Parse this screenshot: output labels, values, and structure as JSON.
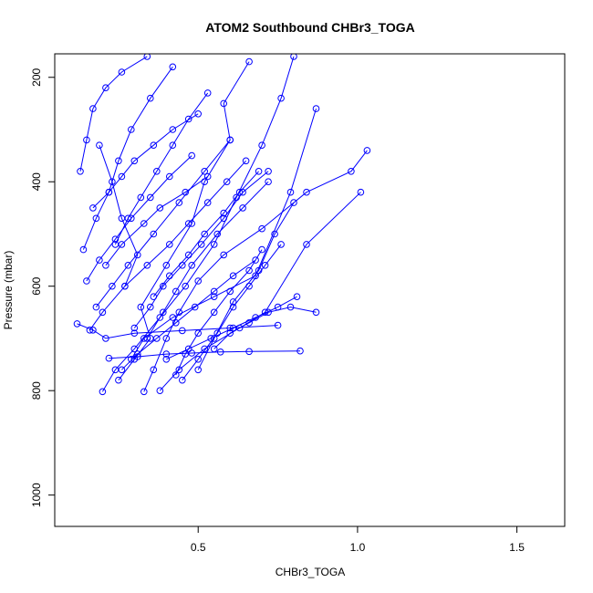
{
  "chart_data": {
    "type": "line",
    "title": "ATOM2 Southbound CHBr3_TOGA",
    "xlabel": "CHBr3_TOGA",
    "ylabel": "Pressure (mbar)",
    "xlim": [
      0.05,
      1.65
    ],
    "ylim": [
      1060,
      155
    ],
    "y_inverted": true,
    "xticks": [
      0.5,
      1.0,
      1.5
    ],
    "xtick_labels": [
      "0.5",
      "1.0",
      "1.5"
    ],
    "yticks": [
      200,
      400,
      600,
      800,
      1000
    ],
    "ytick_labels": [
      "200",
      "400",
      "600",
      "800",
      "1000"
    ],
    "grid": false,
    "marker": "open-circle",
    "series_color": "#0000ff",
    "series": [
      {
        "x": [
          0.2,
          0.24,
          0.3,
          0.38,
          0.46,
          0.55,
          0.62,
          0.7,
          0.76,
          0.8
        ],
        "y": [
          802,
          760,
          720,
          660,
          600,
          520,
          430,
          330,
          240,
          160
        ]
      },
      {
        "x": [
          0.25,
          0.3,
          0.35,
          0.32,
          0.4,
          0.48,
          0.52,
          0.6,
          0.58,
          0.66
        ],
        "y": [
          780,
          740,
          700,
          640,
          560,
          480,
          400,
          320,
          250,
          170
        ]
      },
      {
        "x": [
          0.33,
          0.36,
          0.4,
          0.44,
          0.5,
          0.58,
          0.7,
          0.84,
          0.98,
          1.03
        ],
        "y": [
          802,
          760,
          700,
          650,
          590,
          540,
          490,
          420,
          380,
          340
        ]
      },
      {
        "x": [
          0.29,
          0.33,
          0.42,
          0.55,
          0.68,
          0.79,
          0.87
        ],
        "y": [
          740,
          700,
          660,
          620,
          580,
          420,
          260
        ]
      },
      {
        "x": [
          0.38,
          0.44,
          0.52,
          0.63,
          0.71,
          0.84,
          1.01
        ],
        "y": [
          800,
          760,
          720,
          680,
          650,
          520,
          420
        ]
      },
      {
        "x": [
          0.16,
          0.2,
          0.27,
          0.31,
          0.26,
          0.23,
          0.19
        ],
        "y": [
          684,
          650,
          600,
          540,
          470,
          400,
          330
        ]
      },
      {
        "x": [
          0.22,
          0.31,
          0.4,
          0.48,
          0.57,
          0.66,
          0.82
        ],
        "y": [
          738,
          735,
          730,
          728,
          726,
          725,
          724
        ]
      },
      {
        "x": [
          0.12,
          0.17,
          0.21,
          0.3,
          0.45,
          0.6,
          0.75
        ],
        "y": [
          672,
          684,
          700,
          690,
          685,
          680,
          675
        ]
      },
      {
        "x": [
          0.14,
          0.18,
          0.22,
          0.25,
          0.29,
          0.35,
          0.42
        ],
        "y": [
          530,
          470,
          420,
          360,
          300,
          240,
          180
        ]
      },
      {
        "x": [
          0.45,
          0.5,
          0.56,
          0.61,
          0.66,
          0.71,
          0.76
        ],
        "y": [
          780,
          740,
          690,
          640,
          600,
          560,
          520
        ]
      },
      {
        "x": [
          0.13,
          0.15,
          0.17,
          0.21,
          0.26,
          0.34
        ],
        "y": [
          380,
          320,
          260,
          220,
          190,
          160
        ]
      },
      {
        "x": [
          0.5,
          0.55,
          0.61,
          0.69,
          0.74,
          0.8
        ],
        "y": [
          760,
          700,
          630,
          570,
          500,
          440
        ]
      },
      {
        "x": [
          0.27,
          0.34,
          0.41,
          0.47,
          0.53,
          0.59,
          0.65
        ],
        "y": [
          600,
          560,
          520,
          480,
          440,
          400,
          360
        ]
      },
      {
        "x": [
          0.18,
          0.23,
          0.28,
          0.36,
          0.44,
          0.52,
          0.6
        ],
        "y": [
          640,
          600,
          560,
          500,
          440,
          380,
          320
        ]
      },
      {
        "x": [
          0.34,
          0.39,
          0.43,
          0.48,
          0.56,
          0.64,
          0.72
        ],
        "y": [
          700,
          650,
          610,
          560,
          500,
          450,
          400
        ]
      },
      {
        "x": [
          0.24,
          0.28,
          0.32,
          0.37,
          0.42,
          0.47,
          0.53
        ],
        "y": [
          520,
          470,
          430,
          380,
          330,
          280,
          230
        ]
      },
      {
        "x": [
          0.55,
          0.6,
          0.66,
          0.72,
          0.79,
          0.87
        ],
        "y": [
          720,
          690,
          670,
          650,
          640,
          650
        ]
      },
      {
        "x": [
          0.4,
          0.47,
          0.54,
          0.61,
          0.68,
          0.75,
          0.81
        ],
        "y": [
          740,
          720,
          700,
          680,
          660,
          640,
          620
        ]
      },
      {
        "x": [
          0.21,
          0.26,
          0.33,
          0.38,
          0.46,
          0.53
        ],
        "y": [
          560,
          520,
          480,
          450,
          420,
          390
        ]
      },
      {
        "x": [
          0.3,
          0.35,
          0.39,
          0.45,
          0.51,
          0.58,
          0.64,
          0.72
        ],
        "y": [
          680,
          640,
          600,
          560,
          520,
          470,
          420,
          380
        ]
      },
      {
        "x": [
          0.17,
          0.22,
          0.26,
          0.3,
          0.36,
          0.42,
          0.5
        ],
        "y": [
          450,
          420,
          390,
          360,
          330,
          300,
          270
        ]
      },
      {
        "x": [
          0.43,
          0.46,
          0.5,
          0.55,
          0.6,
          0.66,
          0.7
        ],
        "y": [
          770,
          730,
          690,
          650,
          610,
          570,
          530
        ]
      },
      {
        "x": [
          0.15,
          0.19,
          0.24,
          0.29,
          0.35,
          0.41,
          0.48
        ],
        "y": [
          590,
          550,
          510,
          470,
          430,
          390,
          350
        ]
      },
      {
        "x": [
          0.36,
          0.41,
          0.47,
          0.52,
          0.58,
          0.63,
          0.69
        ],
        "y": [
          620,
          580,
          540,
          500,
          460,
          420,
          380
        ]
      },
      {
        "x": [
          0.26,
          0.31,
          0.37,
          0.43,
          0.49,
          0.55,
          0.61,
          0.68
        ],
        "y": [
          760,
          730,
          700,
          670,
          640,
          610,
          580,
          550
        ]
      }
    ]
  }
}
